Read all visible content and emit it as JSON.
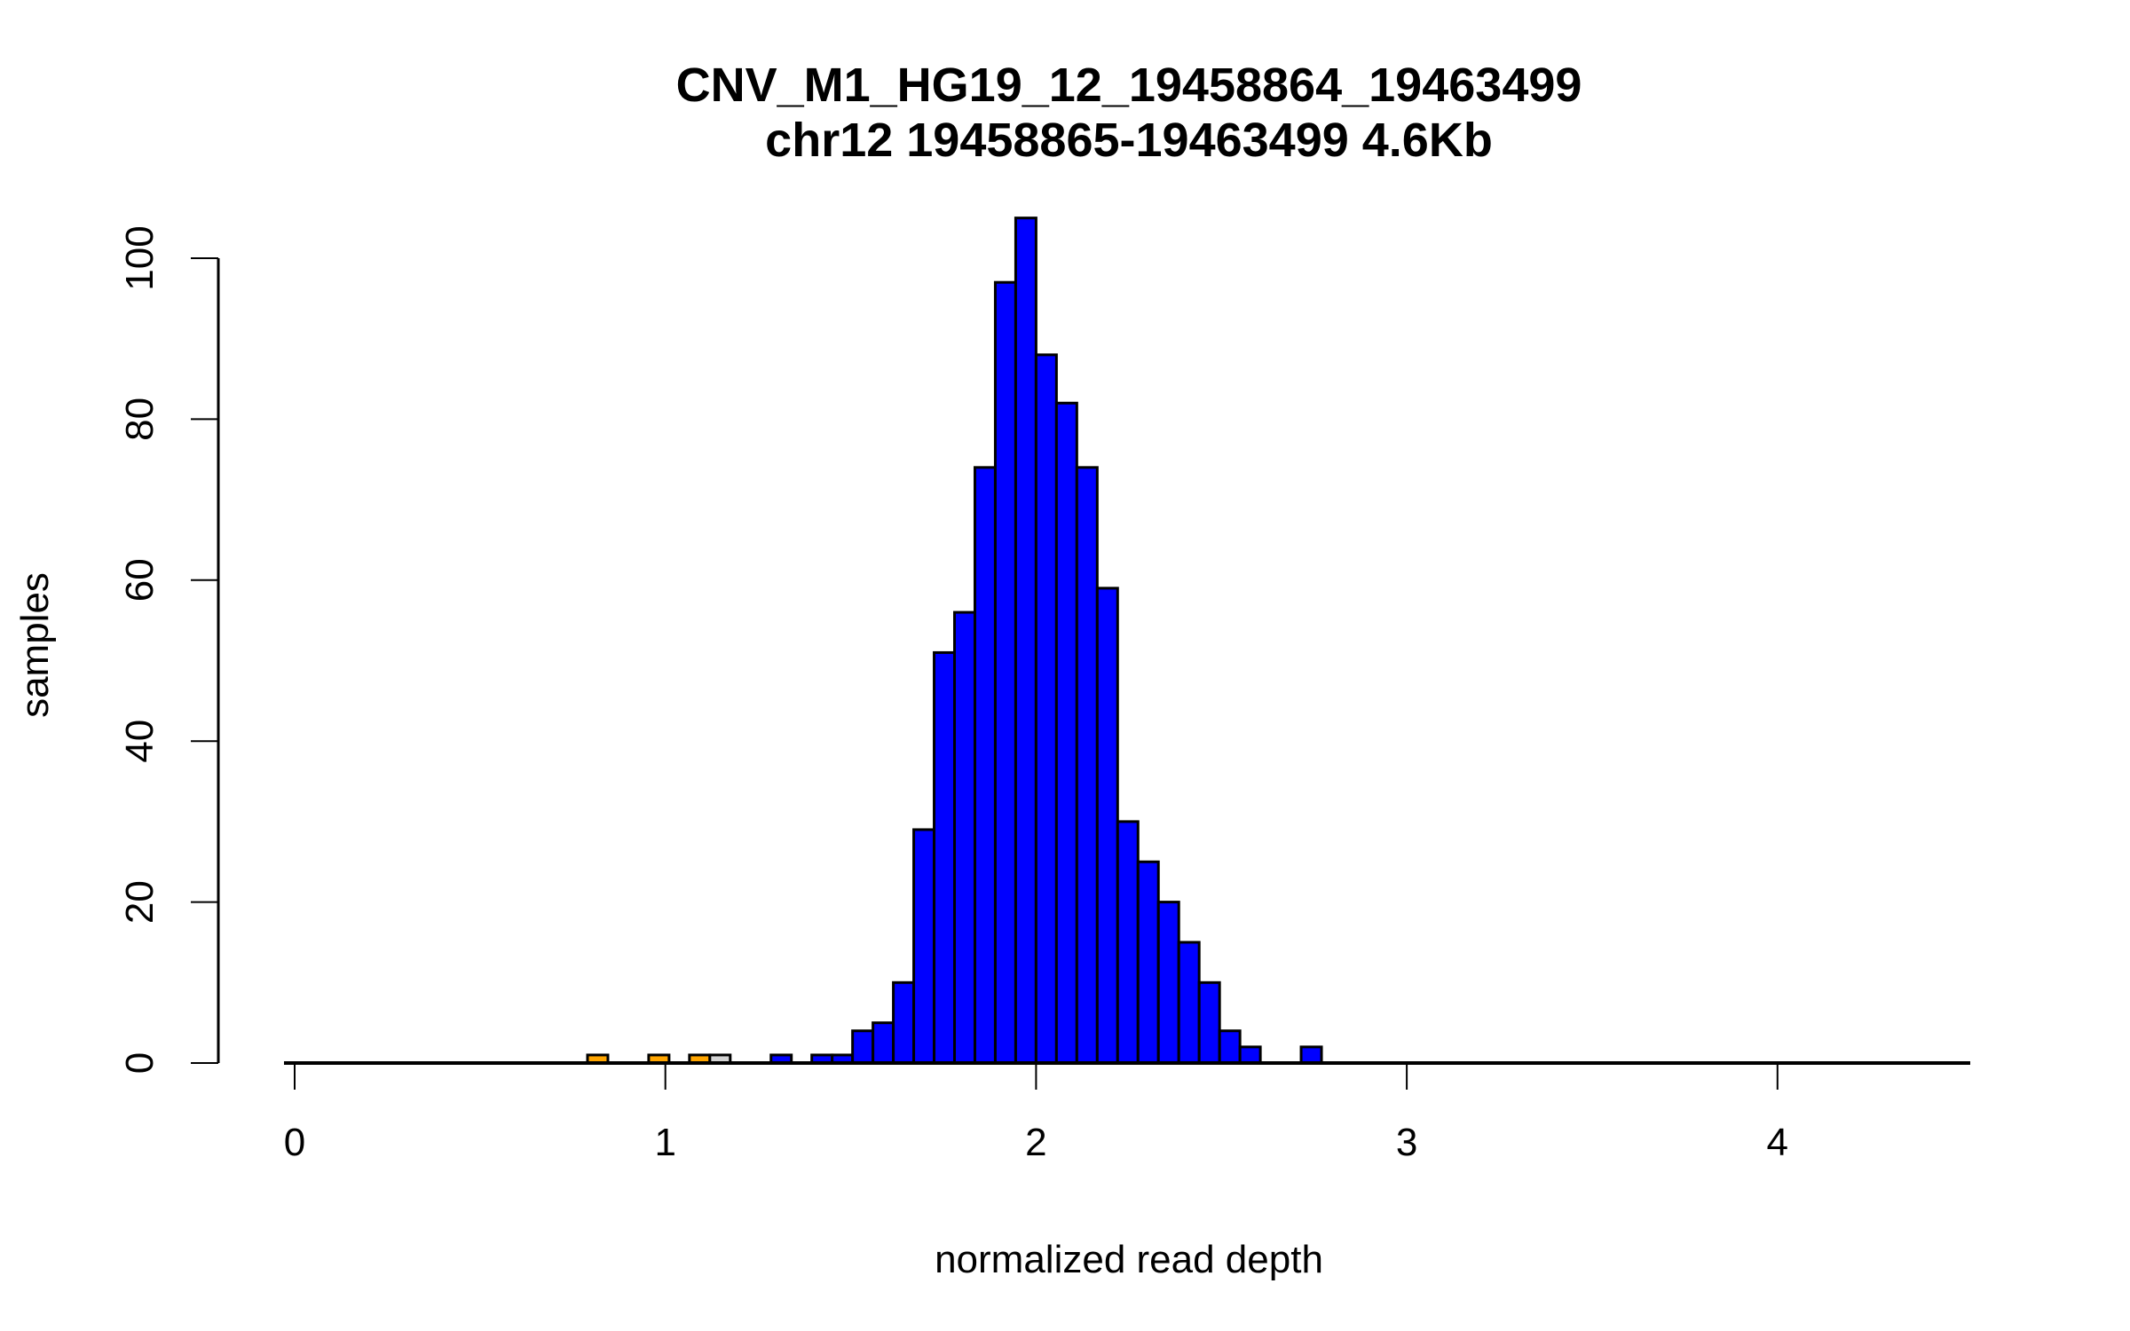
{
  "chart_data": {
    "type": "bar",
    "title": "CNV_M1_HG19_12_19458864_19463499",
    "subtitle": "chr12 19458865-19463499 4.6Kb",
    "xlabel": "normalized read depth",
    "ylabel": "samples",
    "xlim": [
      0,
      4.5
    ],
    "ylim": [
      0,
      105
    ],
    "x_ticks": [
      "0",
      "1",
      "2",
      "3",
      "4"
    ],
    "y_ticks": [
      "0",
      "20",
      "40",
      "60",
      "80",
      "100"
    ],
    "grid": false,
    "bin_width": 0.055,
    "colors": {
      "orange": "#FFA500",
      "gray": "#D3D3D3",
      "blue": "#0000FF",
      "outline": "#000000"
    },
    "bins": [
      {
        "start": 0.79,
        "count": 1,
        "color": "orange"
      },
      {
        "start": 0.955,
        "count": 1,
        "color": "orange"
      },
      {
        "start": 1.065,
        "count": 1,
        "color": "orange"
      },
      {
        "start": 1.12,
        "count": 1,
        "color": "gray"
      },
      {
        "start": 1.285,
        "count": 1,
        "color": "blue"
      },
      {
        "start": 1.395,
        "count": 1,
        "color": "blue"
      },
      {
        "start": 1.45,
        "count": 1,
        "color": "blue"
      },
      {
        "start": 1.505,
        "count": 4,
        "color": "blue"
      },
      {
        "start": 1.56,
        "count": 5,
        "color": "blue"
      },
      {
        "start": 1.615,
        "count": 10,
        "color": "blue"
      },
      {
        "start": 1.67,
        "count": 29,
        "color": "blue"
      },
      {
        "start": 1.725,
        "count": 51,
        "color": "blue"
      },
      {
        "start": 1.78,
        "count": 56,
        "color": "blue"
      },
      {
        "start": 1.835,
        "count": 74,
        "color": "blue"
      },
      {
        "start": 1.89,
        "count": 97,
        "color": "blue"
      },
      {
        "start": 1.945,
        "count": 105,
        "color": "blue"
      },
      {
        "start": 2.0,
        "count": 88,
        "color": "blue"
      },
      {
        "start": 2.055,
        "count": 82,
        "color": "blue"
      },
      {
        "start": 2.11,
        "count": 74,
        "color": "blue"
      },
      {
        "start": 2.165,
        "count": 59,
        "color": "blue"
      },
      {
        "start": 2.22,
        "count": 30,
        "color": "blue"
      },
      {
        "start": 2.275,
        "count": 25,
        "color": "blue"
      },
      {
        "start": 2.33,
        "count": 20,
        "color": "blue"
      },
      {
        "start": 2.385,
        "count": 15,
        "color": "blue"
      },
      {
        "start": 2.44,
        "count": 10,
        "color": "blue"
      },
      {
        "start": 2.495,
        "count": 4,
        "color": "blue"
      },
      {
        "start": 2.55,
        "count": 2,
        "color": "blue"
      },
      {
        "start": 2.715,
        "count": 2,
        "color": "blue"
      }
    ]
  }
}
